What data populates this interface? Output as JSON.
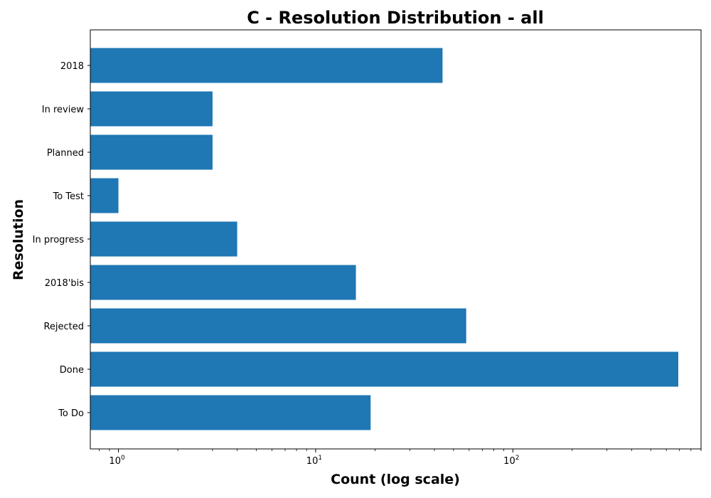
{
  "chart_data": {
    "type": "bar",
    "orientation": "horizontal",
    "title": "C - Resolution Distribution - all",
    "xlabel": "Count (log scale)",
    "ylabel": "Resolution",
    "x_scale": "log",
    "xlim": [
      0.72,
      900
    ],
    "x_major_ticks": [
      {
        "base": "10",
        "exp": "0",
        "value": 1
      },
      {
        "base": "10",
        "exp": "1",
        "value": 10
      },
      {
        "base": "10",
        "exp": "2",
        "value": 100
      }
    ],
    "categories": [
      "To Do",
      "Done",
      "Rejected",
      "2018'bis",
      "In progress",
      "To Test",
      "Planned",
      "In review",
      "2018"
    ],
    "values": [
      19,
      690,
      58,
      16,
      4,
      1,
      3,
      3,
      44
    ],
    "bar_color": "#1f77b4",
    "grid": false,
    "legend": "none"
  }
}
